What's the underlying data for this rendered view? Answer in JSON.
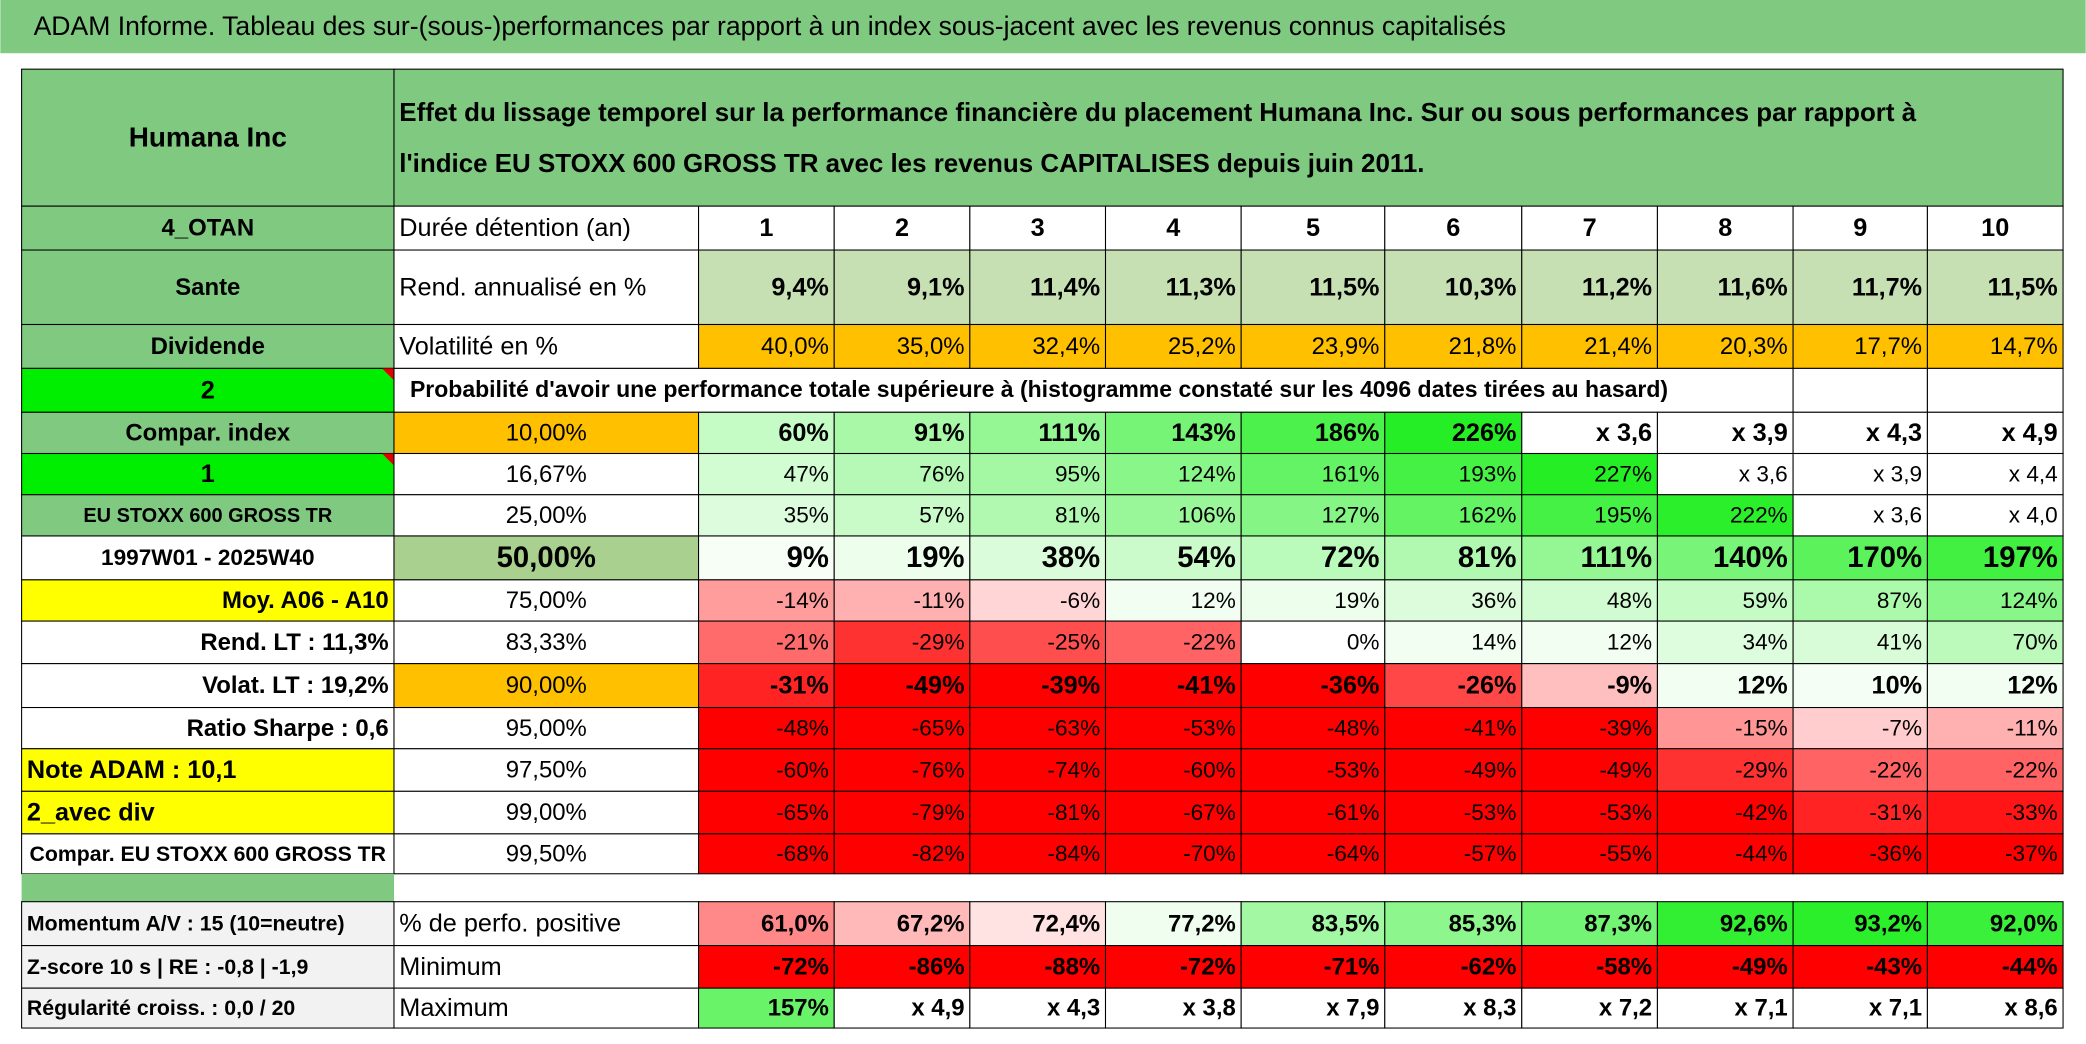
{
  "title": "ADAM Informe. Tableau des sur-(sous-)performances par rapport à un index sous-jacent avec les revenus connus capitalisés",
  "header": {
    "left": "Humana Inc",
    "lines": [
      "Effet du lissage temporel sur la performance financière du placement Humana Inc. Sur ou sous performances par rapport à",
      "l'indice EU STOXX 600 GROSS TR avec les revenus CAPITALISES depuis juin 2011."
    ]
  },
  "duration": {
    "left": "4_OTAN",
    "label": "Durée détention (an)",
    "values": [
      1,
      2,
      3,
      4,
      5,
      6,
      7,
      8,
      9,
      10
    ]
  },
  "return": {
    "left": "Sante",
    "label": "Rend. annualisé en %",
    "values": [
      "9,4%",
      "9,1%",
      "11,4%",
      "11,3%",
      "11,5%",
      "10,3%",
      "11,2%",
      "11,6%",
      "11,7%",
      "11,5%"
    ]
  },
  "volatility": {
    "left": "Dividende",
    "label": "Volatilité en %",
    "values": [
      "40,0%",
      "35,0%",
      "32,4%",
      "25,2%",
      "23,9%",
      "21,8%",
      "21,4%",
      "20,3%",
      "17,7%",
      "14,7%"
    ]
  },
  "probability": {
    "left": "2",
    "label": "Probabilité d'avoir une performance totale supérieure à (histogramme constaté sur les 4096 dates tirées au hasard)"
  },
  "percentiles": [
    {
      "left": "Compar. index",
      "threshold": "10,00%",
      "values": [
        "60%",
        "91%",
        "111%",
        "143%",
        "186%",
        "226%",
        "x 3,6",
        "x 3,9",
        "x 4,3",
        "x 4,9"
      ]
    },
    {
      "left": "1",
      "threshold": "16,67%",
      "values": [
        "47%",
        "76%",
        "95%",
        "124%",
        "161%",
        "193%",
        "227%",
        "x 3,6",
        "x 3,9",
        "x 4,4"
      ]
    },
    {
      "left": "EU STOXX 600 GROSS TR",
      "threshold": "25,00%",
      "values": [
        "35%",
        "57%",
        "81%",
        "106%",
        "127%",
        "162%",
        "195%",
        "222%",
        "x 3,6",
        "x 4,0"
      ]
    },
    {
      "left": "1997W01 - 2025W40",
      "threshold": "50,00%",
      "values": [
        "9%",
        "19%",
        "38%",
        "54%",
        "72%",
        "81%",
        "111%",
        "140%",
        "170%",
        "197%"
      ]
    },
    {
      "left": "Moy. A06 - A10",
      "threshold": "75,00%",
      "values": [
        "-14%",
        "-11%",
        "-6%",
        "12%",
        "19%",
        "36%",
        "48%",
        "59%",
        "87%",
        "124%"
      ]
    },
    {
      "left": "Rend. LT :   11,3%",
      "threshold": "83,33%",
      "values": [
        "-21%",
        "-29%",
        "-25%",
        "-22%",
        "0%",
        "14%",
        "12%",
        "34%",
        "41%",
        "70%"
      ]
    },
    {
      "left": "Volat. LT :   19,2%",
      "threshold": "90,00%",
      "values": [
        "-31%",
        "-49%",
        "-39%",
        "-41%",
        "-36%",
        "-26%",
        "-9%",
        "12%",
        "10%",
        "12%"
      ]
    },
    {
      "left": "Ratio Sharpe :   0,6",
      "threshold": "95,00%",
      "values": [
        "-48%",
        "-65%",
        "-63%",
        "-53%",
        "-48%",
        "-41%",
        "-39%",
        "-15%",
        "-7%",
        "-11%"
      ]
    },
    {
      "left": "Note ADAM : 10,1",
      "threshold": "97,50%",
      "values": [
        "-60%",
        "-76%",
        "-74%",
        "-60%",
        "-53%",
        "-49%",
        "-49%",
        "-29%",
        "-22%",
        "-22%"
      ]
    },
    {
      "left": "2_avec div",
      "threshold": "99,00%",
      "values": [
        "-65%",
        "-79%",
        "-81%",
        "-67%",
        "-61%",
        "-53%",
        "-53%",
        "-42%",
        "-31%",
        "-33%"
      ]
    },
    {
      "left": "Compar. EU STOXX 600 GROSS TR",
      "threshold": "99,50%",
      "values": [
        "-68%",
        "-82%",
        "-84%",
        "-70%",
        "-64%",
        "-57%",
        "-55%",
        "-44%",
        "-36%",
        "-37%"
      ]
    }
  ],
  "summary": [
    {
      "left": "Momentum A/V : 15 (10=neutre)",
      "label": "% de perfo. positive",
      "values": [
        "61,0%",
        "67,2%",
        "72,4%",
        "77,2%",
        "83,5%",
        "85,3%",
        "87,3%",
        "92,6%",
        "93,2%",
        "92,0%"
      ]
    },
    {
      "left": "Z-score 10 s | RE : -0,8 | -1,9",
      "label": "Minimum",
      "values": [
        "-72%",
        "-86%",
        "-88%",
        "-72%",
        "-71%",
        "-62%",
        "-58%",
        "-49%",
        "-43%",
        "-44%"
      ]
    },
    {
      "left": "Régularité croiss. : 0,0 / 20",
      "label": "Maximum",
      "values": [
        "157%",
        "x 4,9",
        "x 4,3",
        "x 3,8",
        "x 7,9",
        "x 8,3",
        "x 7,2",
        "x 7,1",
        "x 7,1",
        "x 8,6"
      ]
    }
  ]
}
